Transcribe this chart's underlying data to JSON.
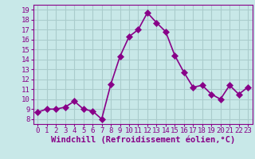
{
  "x": [
    0,
    1,
    2,
    3,
    4,
    5,
    6,
    7,
    8,
    9,
    10,
    11,
    12,
    13,
    14,
    15,
    16,
    17,
    18,
    19,
    20,
    21,
    22,
    23
  ],
  "y": [
    8.7,
    9.0,
    9.0,
    9.2,
    9.8,
    9.0,
    8.8,
    8.0,
    11.5,
    14.3,
    16.3,
    17.0,
    18.7,
    17.7,
    16.8,
    14.4,
    12.7,
    11.2,
    11.4,
    10.5,
    10.0,
    11.4,
    10.5,
    11.2
  ],
  "line_color": "#880088",
  "marker_color": "#880088",
  "bg_color": "#c8e8e8",
  "grid_color": "#aacccc",
  "xlabel": "Windchill (Refroidissement éolien,°C)",
  "xlabel_color": "#880088",
  "ylim": [
    7.5,
    19.5
  ],
  "xlim": [
    -0.5,
    23.5
  ],
  "yticks": [
    8,
    9,
    10,
    11,
    12,
    13,
    14,
    15,
    16,
    17,
    18,
    19
  ],
  "xticks": [
    0,
    1,
    2,
    3,
    4,
    5,
    6,
    7,
    8,
    9,
    10,
    11,
    12,
    13,
    14,
    15,
    16,
    17,
    18,
    19,
    20,
    21,
    22,
    23
  ],
  "tick_color": "#880088",
  "tick_fontsize": 6.5,
  "xlabel_fontsize": 7.5,
  "line_width": 1.2,
  "marker_size": 4
}
